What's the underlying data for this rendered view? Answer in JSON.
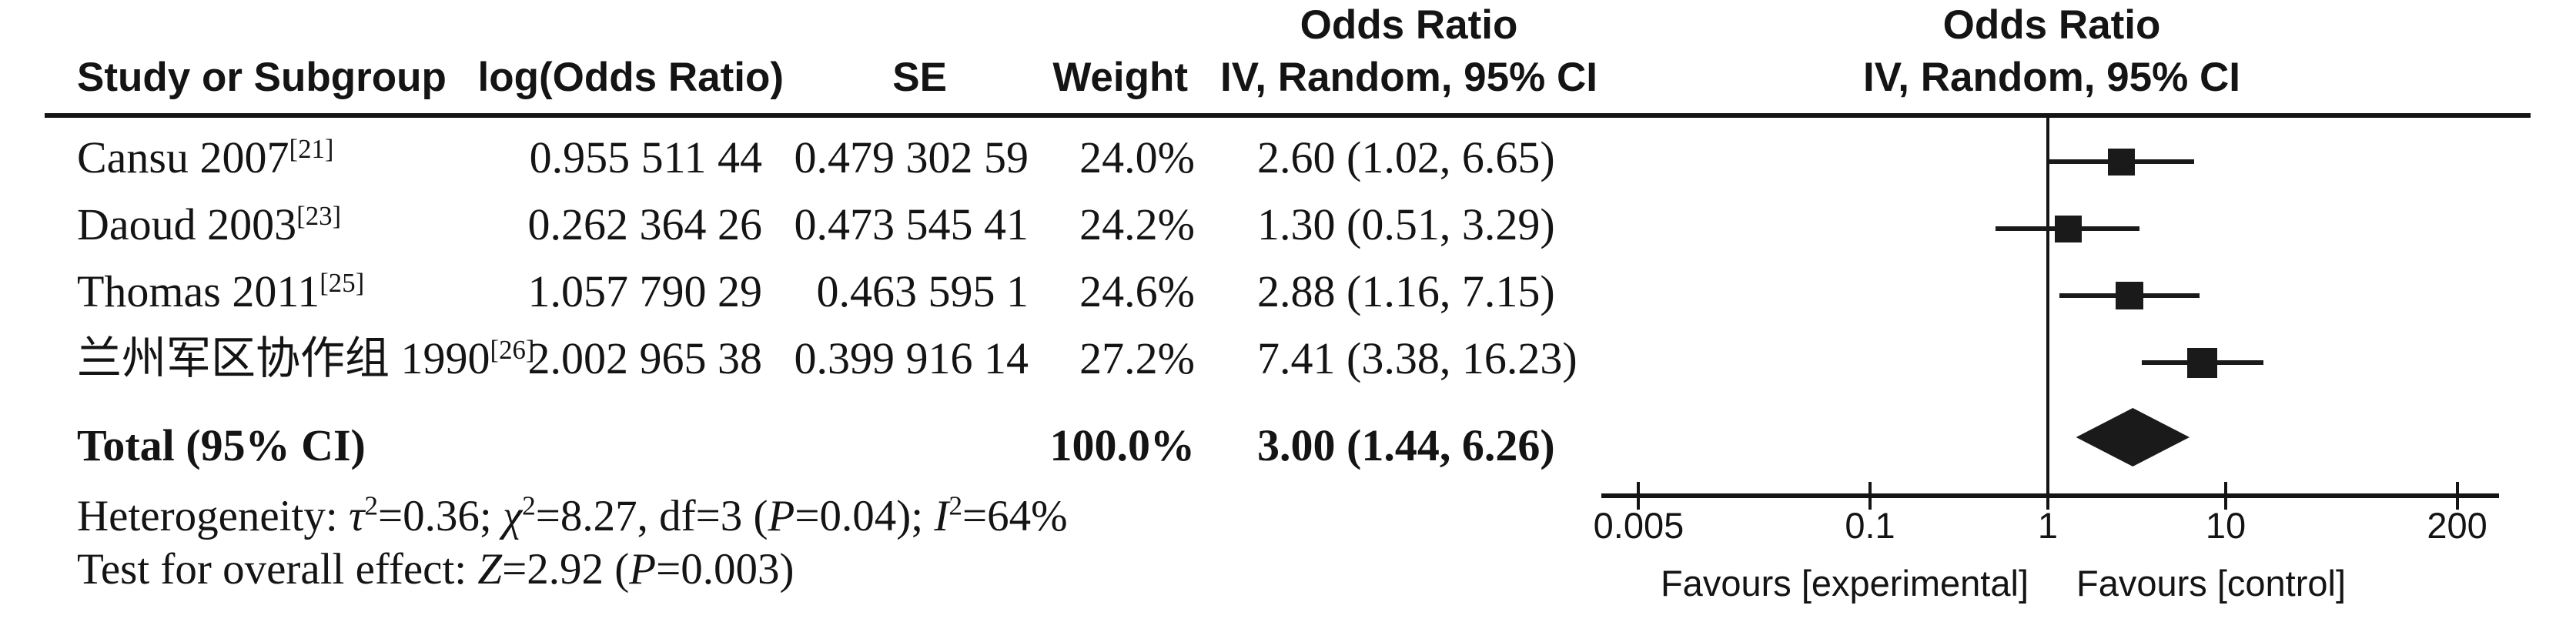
{
  "figure": {
    "background": "#ffffff",
    "ink": "#141414"
  },
  "columns": {
    "or_header": "Odds Ratio",
    "study": "Study or Subgroup",
    "log_or": "log(Odds Ratio)",
    "se": "SE",
    "weight": "Weight",
    "method": "IV, Random, 95% CI"
  },
  "studies": [
    {
      "name": "Cansu 2007",
      "ref": "[21]",
      "log_or": "0.955 511 44",
      "se": "0.479 302 59",
      "weight": "24.0%",
      "weight_value": 24.0,
      "or_ci_text": "2.60 (1.02, 6.65)",
      "or": 2.6,
      "ci_low": 1.02,
      "ci_high": 6.65
    },
    {
      "name": "Daoud 2003",
      "ref": "[23]",
      "log_or": "0.262 364 26",
      "se": "0.473 545 41",
      "weight": "24.2%",
      "weight_value": 24.2,
      "or_ci_text": "1.30 (0.51, 3.29)",
      "or": 1.3,
      "ci_low": 0.51,
      "ci_high": 3.29
    },
    {
      "name": "Thomas 2011",
      "ref": "[25]",
      "log_or": "1.057 790 29",
      "se": "0.463 595 1",
      "weight": "24.6%",
      "weight_value": 24.6,
      "or_ci_text": "2.88 (1.16, 7.15)",
      "or": 2.88,
      "ci_low": 1.16,
      "ci_high": 7.15
    },
    {
      "name": "兰州军区协作组 1990",
      "ref": "[26]",
      "log_or": "2.002 965 38",
      "se": "0.399 916 14",
      "weight": "27.2%",
      "weight_value": 27.2,
      "or_ci_text": "7.41 (3.38, 16.23)",
      "or": 7.41,
      "ci_low": 3.38,
      "ci_high": 16.23
    }
  ],
  "total": {
    "label": "Total (95% CI)",
    "weight": "100.0%",
    "or_ci_text": "3.00 (1.44, 6.26)",
    "or": 3.0,
    "ci_low": 1.44,
    "ci_high": 6.26
  },
  "stats": {
    "heterogeneity_segments": [
      {
        "t": "Heterogeneity: "
      },
      {
        "t": "τ",
        "i": true
      },
      {
        "t": "2",
        "sup": true
      },
      {
        "t": "=0.36; "
      },
      {
        "t": "χ",
        "i": true
      },
      {
        "t": "2",
        "sup": true
      },
      {
        "t": "=8.27, df=3 ("
      },
      {
        "t": "P",
        "i": true
      },
      {
        "t": "=0.04); "
      },
      {
        "t": "I",
        "i": true
      },
      {
        "t": "2",
        "sup": true
      },
      {
        "t": "=64%"
      }
    ],
    "overall_segments": [
      {
        "t": "Test for overall effect: "
      },
      {
        "t": "Z",
        "i": true
      },
      {
        "t": "=2.92 ("
      },
      {
        "t": "P",
        "i": true
      },
      {
        "t": "=0.003)"
      }
    ]
  },
  "axis": {
    "scale": "log",
    "ticks": [
      0.005,
      0.1,
      1,
      10,
      200
    ],
    "tick_labels": [
      "0.005",
      "0.1",
      "1",
      "10",
      "200"
    ],
    "reference_line": 1,
    "favours_left": "Favours [experimental]",
    "favours_right": "Favours [control]"
  },
  "chart_data": {
    "type": "scatter",
    "plot_type": "forest",
    "title": "Odds Ratio — IV, Random, 95% CI",
    "x_scale": "log",
    "xlim": [
      0.005,
      200
    ],
    "x_ticks": [
      0.005,
      0.1,
      1,
      10,
      200
    ],
    "reference_line": 1,
    "categories": [
      "Cansu 2007 [21]",
      "Daoud 2003 [23]",
      "Thomas 2011 [25]",
      "兰州军区协作组 1990 [26]"
    ],
    "series": [
      {
        "name": "Odds Ratio, IV, Random, 95% CI",
        "values": [
          2.6,
          1.3,
          2.88,
          7.41
        ],
        "ci_low": [
          1.02,
          0.51,
          1.16,
          3.38
        ],
        "ci_high": [
          6.65,
          3.29,
          7.15,
          16.23
        ],
        "weights_pct": [
          24.0,
          24.2,
          24.6,
          27.2
        ],
        "log_or": [
          0.95551144,
          0.26236426,
          1.05779029,
          2.00296538
        ],
        "se": [
          0.47930259,
          0.47354541,
          0.4635951,
          0.39991614
        ]
      }
    ],
    "total": {
      "label": "Total (95% CI)",
      "value": 3.0,
      "ci_low": 1.44,
      "ci_high": 6.26,
      "weight_pct": 100.0
    },
    "heterogeneity": {
      "tau2": 0.36,
      "chi2": 8.27,
      "df": 3,
      "P": 0.04,
      "I2_pct": 64
    },
    "overall_effect": {
      "Z": 2.92,
      "P": 0.003
    },
    "xlabel_left": "Favours [experimental]",
    "xlabel_right": "Favours [control]",
    "legend_position": "none",
    "grid": false
  }
}
